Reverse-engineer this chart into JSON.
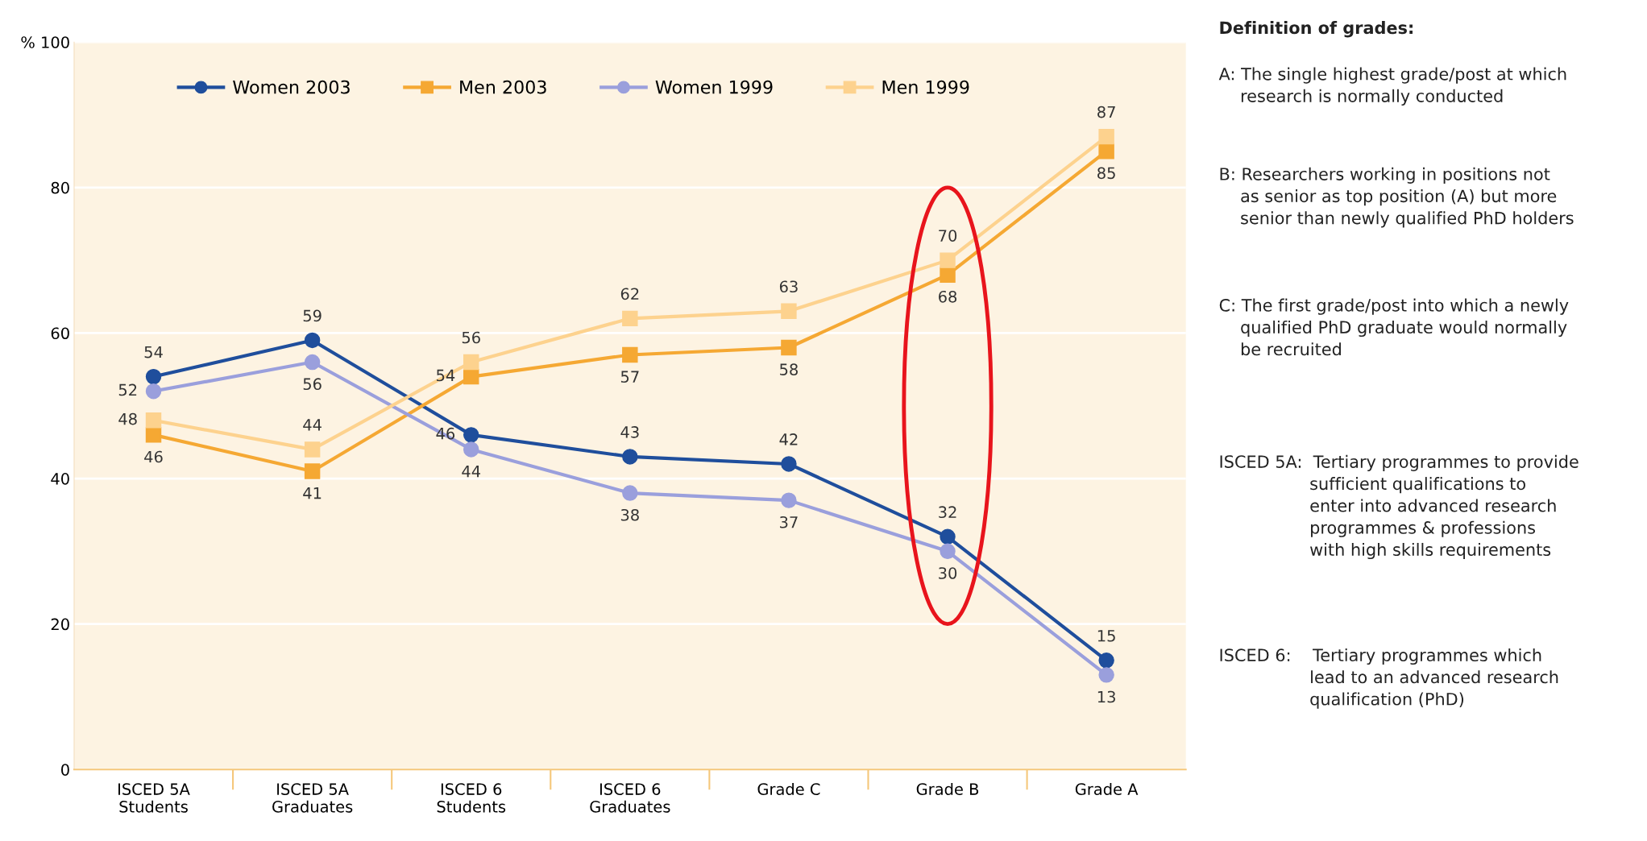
{
  "chart_data": {
    "type": "line",
    "categories": [
      "ISCED 5A\nStudents",
      "ISCED 5A\nGraduates",
      "ISCED 6\nStudents",
      "ISCED 6\nGraduates",
      "Grade C",
      "Grade B",
      "Grade A"
    ],
    "series": [
      {
        "name": "Women 2003",
        "color": "#1f4e9c",
        "marker": "circle",
        "values": [
          54,
          59,
          46,
          43,
          42,
          32,
          15
        ]
      },
      {
        "name": "Men 2003",
        "color": "#f5a833",
        "marker": "square",
        "values": [
          46,
          41,
          54,
          57,
          58,
          68,
          85
        ]
      },
      {
        "name": "Women 1999",
        "color": "#9a9fdc",
        "marker": "circle",
        "values": [
          52,
          56,
          44,
          38,
          37,
          30,
          13
        ]
      },
      {
        "name": "Men 1999",
        "color": "#fdd28e",
        "marker": "square",
        "values": [
          48,
          44,
          56,
          62,
          63,
          70,
          87
        ]
      }
    ],
    "ylim": [
      0,
      100
    ],
    "yticks": [
      0,
      20,
      40,
      60,
      80,
      {
        "value": 100,
        "label": "% 100"
      }
    ],
    "grid": "y",
    "legend": "top",
    "data_labels": true,
    "line_style": "solid",
    "annotations": [
      "Definition of grades:",
      "A: The single highest grade/post at which\n    research is normally conducted",
      "B: Researchers working in positions not\n    as senior as top position (A) but more\n    senior than newly qualified PhD holders",
      "C: The first grade/post into which a newly\n    qualified PhD graduate would normally\n    be recruited",
      "ISCED 5A:  Tertiary programmes to provide\n                 sufficient qualifications to\n                 enter into advanced research\n                 programmes & professions\n                 with high skills requirements",
      "ISCED 6:    Tertiary programmes which\n                 lead to an advanced research\n                 qualification (PhD)"
    ]
  }
}
